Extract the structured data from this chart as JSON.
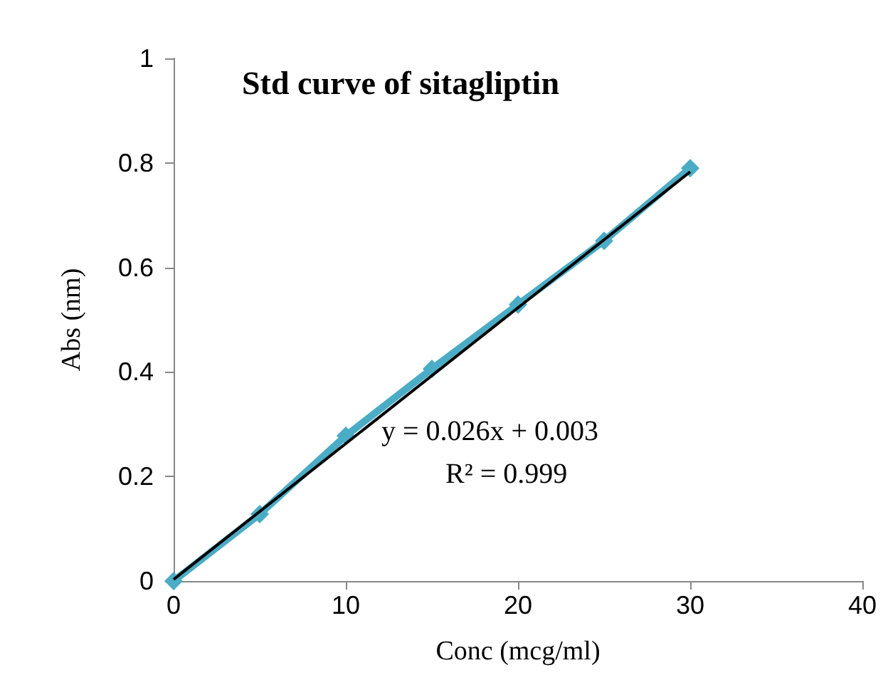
{
  "chart_data": {
    "type": "line",
    "title": "Std curve of sitagliptin",
    "xlabel": "Conc (mcg/ml)",
    "ylabel": "Abs (nm)",
    "x": [
      0,
      5,
      10,
      15,
      20,
      25,
      30
    ],
    "series": [
      {
        "color": "#4bacc6",
        "marker": "diamond",
        "values": [
          0,
          0.128,
          0.278,
          0.406,
          0.529,
          0.651,
          0.79
        ]
      },
      {
        "color": "#000000",
        "marker": "none",
        "x": [
          0,
          30
        ],
        "values": [
          0.003,
          0.783
        ]
      }
    ],
    "xlim": [
      0,
      40
    ],
    "xticks": [
      0,
      10,
      20,
      30,
      40
    ],
    "ylim": [
      0,
      1
    ],
    "yticks": [
      0,
      0.2,
      0.4,
      0.6,
      0.8,
      1
    ],
    "grid": false,
    "annotations": [
      "y = 0.026x + 0.003",
      "R² = 0.999"
    ]
  }
}
